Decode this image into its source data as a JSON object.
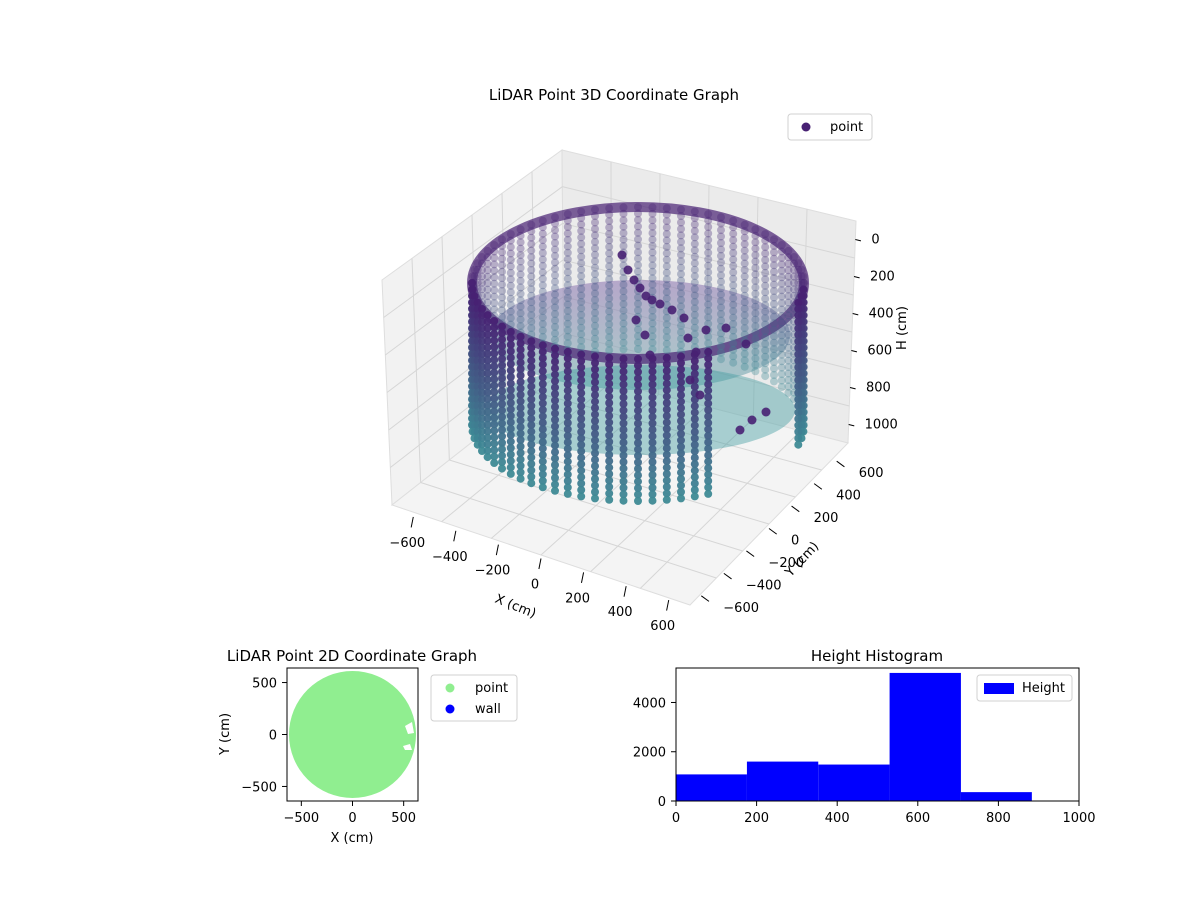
{
  "colors": {
    "scatter_3d_top": "#482173",
    "scatter_3d_bottom": "#3e8a95",
    "point_2d": "#90ee90",
    "wall_2d": "#0000ff",
    "histogram": "#0000ff"
  },
  "chart_data": [
    {
      "type": "scatter3d",
      "title": "LiDAR Point 3D Coordinate Graph",
      "xlabel": "X (cm)",
      "ylabel": "Y (cm)",
      "zlabel": "H (cm)",
      "xlim": [
        -650,
        650
      ],
      "ylim": [
        -650,
        650
      ],
      "zlim": [
        0,
        1000
      ],
      "z_inverted": true,
      "xticks": [
        "−600",
        "−400",
        "−200",
        "0",
        "200",
        "400",
        "600"
      ],
      "yticks": [
        "−600",
        "−400",
        "−200",
        "0",
        "200",
        "400",
        "600"
      ],
      "zticks": [
        "0",
        "200",
        "400",
        "600",
        "800",
        "1000"
      ],
      "legend": {
        "position": "top-right",
        "entries": [
          "point"
        ]
      },
      "grid": true,
      "series": [
        {
          "name": "point",
          "shape": "cylinder wall of points, radius about 620 cm, height 0 to about 1000 cm, colored by height, open gap toward front-right",
          "radius": 620,
          "z_range": [
            0,
            1000
          ]
        }
      ]
    },
    {
      "type": "scatter",
      "title": "LiDAR Point 2D Coordinate Graph",
      "xlabel": "X (cm)",
      "ylabel": "Y (cm)",
      "xlim": [
        -640,
        640
      ],
      "ylim": [
        -640,
        640
      ],
      "xticks": [
        "−500",
        "0",
        "500"
      ],
      "yticks": [
        "−500",
        "0",
        "500"
      ],
      "legend": {
        "position": "right",
        "entries": [
          "point",
          "wall"
        ]
      },
      "grid": false,
      "series": [
        {
          "name": "point",
          "shape": "filled disk",
          "center": [
            0,
            0
          ],
          "radius": 620
        },
        {
          "name": "wall",
          "values": []
        }
      ]
    },
    {
      "type": "bar",
      "title": "Height Histogram",
      "xlim": [
        0,
        1000
      ],
      "ylim": [
        0,
        5400
      ],
      "xticks": [
        "0",
        "200",
        "400",
        "600",
        "800",
        "1000"
      ],
      "yticks": [
        "0",
        "2000",
        "4000"
      ],
      "legend": {
        "position": "top-right",
        "entries": [
          "Height"
        ]
      },
      "grid": false,
      "series": [
        {
          "name": "Height",
          "bins": [
            {
              "start": 0,
              "end": 176,
              "count": 1080
            },
            {
              "start": 176,
              "end": 353,
              "count": 1600
            },
            {
              "start": 353,
              "end": 530,
              "count": 1480
            },
            {
              "start": 530,
              "end": 707,
              "count": 5200
            },
            {
              "start": 707,
              "end": 883,
              "count": 360
            }
          ]
        }
      ]
    }
  ]
}
